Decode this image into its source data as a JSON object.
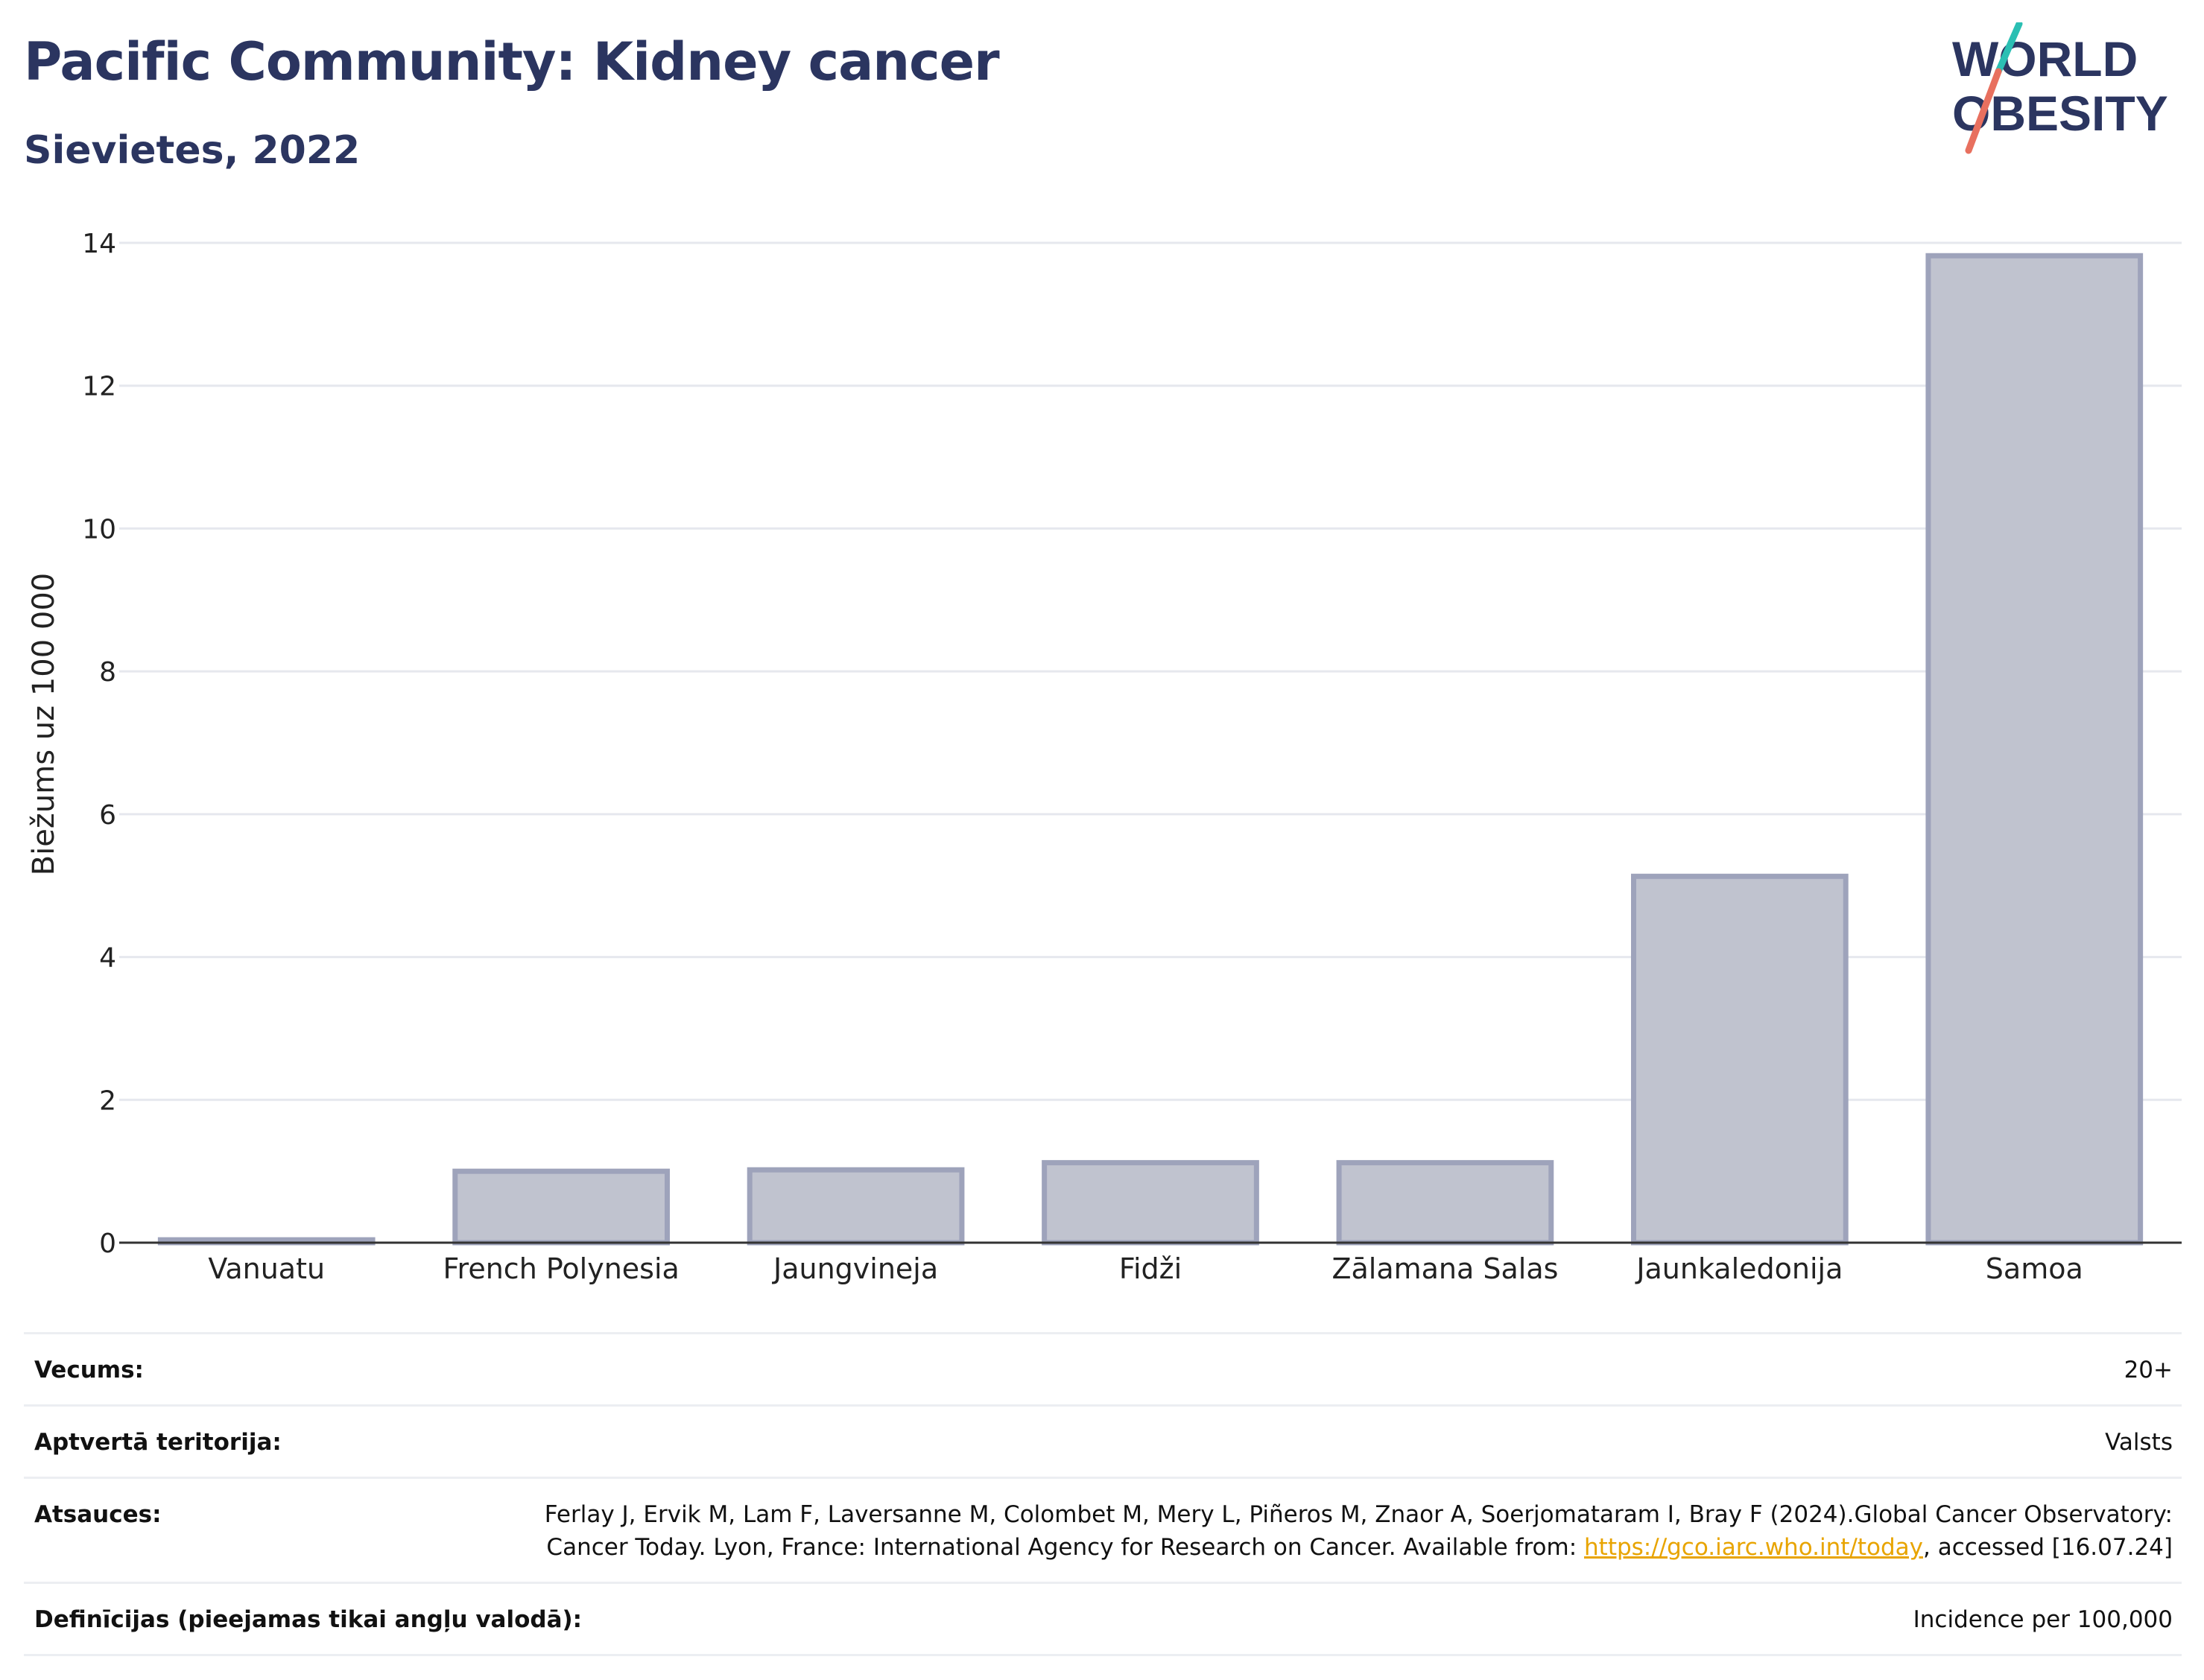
{
  "header": {
    "title": "Pacific Community: Kidney cancer",
    "subtitle": "Sievietes, 2022"
  },
  "logo": {
    "line1": "WORLD",
    "line2": "OBESITY",
    "slash_colors": [
      "#2bbfb3",
      "#e8705f"
    ],
    "text_color": "#2b3560"
  },
  "chart_data": {
    "type": "bar",
    "categories": [
      "Vanuatu",
      "French Polynesia",
      "Jaungvineja",
      "Fidži",
      "Zālamana Salas",
      "Jaunkaledonija",
      "Samoa"
    ],
    "values": [
      0.04,
      1.0,
      1.02,
      1.12,
      1.12,
      5.13,
      13.82
    ],
    "ylabel": "Biežums uz 100 000",
    "xlabel": "",
    "ylim": [
      0,
      14
    ],
    "yticks": [
      0,
      2,
      4,
      6,
      8,
      10,
      12,
      14
    ],
    "grid": true,
    "bar_fill": "#c0c3cf",
    "bar_stroke": "#9ea3bb"
  },
  "meta": {
    "age_label": "Vecums:",
    "age_value": "20+",
    "coverage_label": "Aptvertā teritorija:",
    "coverage_value": "Valsts",
    "refs_label": "Atsauces:",
    "refs_text_1": "Ferlay J, Ervik M, Lam F, Laversanne M, Colombet M, Mery L, Piñeros M, Znaor A, Soerjomataram I, Bray F (2024).Global Cancer Observatory: Cancer Today. Lyon, France: International Agency for Research on Cancer. Available from: ",
    "refs_link": "https://gco.iarc.who.int/today",
    "refs_text_2": ", accessed [16.07.24]",
    "defs_label": "Definīcijas (pieejamas tikai angļu valodā):",
    "defs_value": "Incidence per 100,000"
  }
}
